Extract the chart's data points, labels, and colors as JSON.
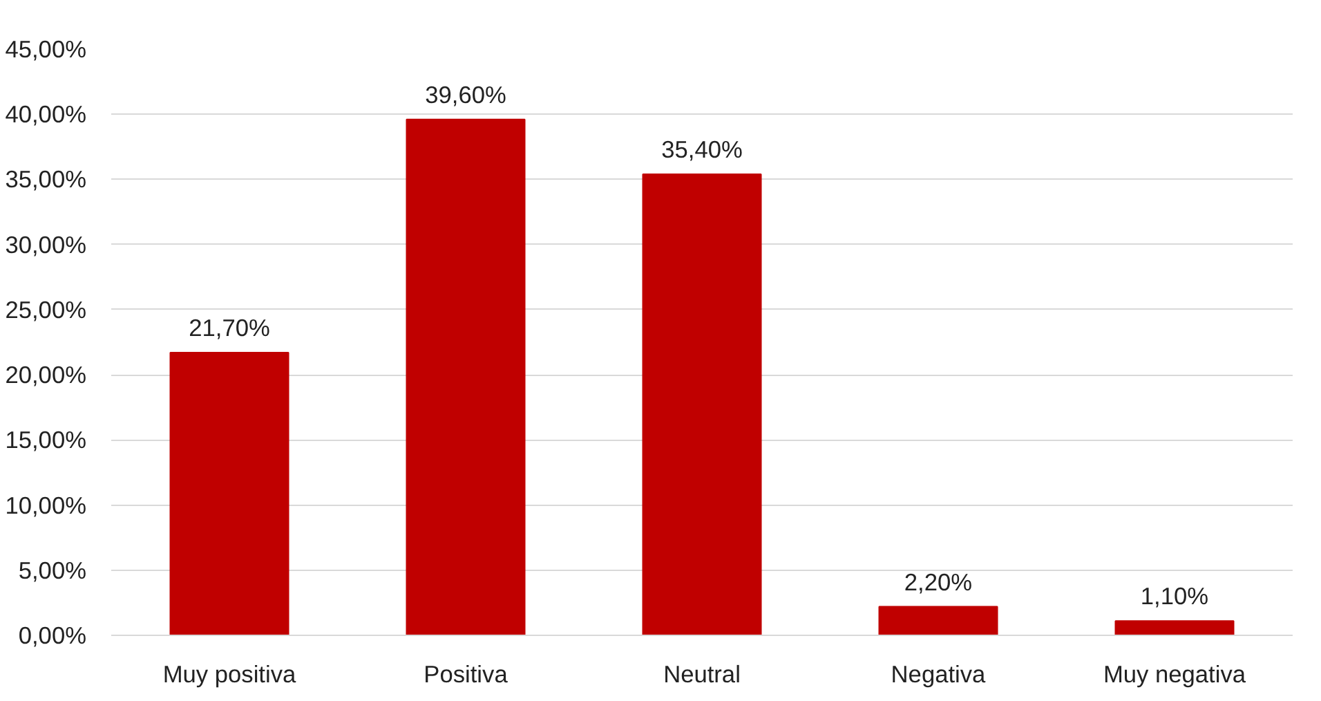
{
  "chart_data": {
    "type": "bar",
    "categories": [
      "Muy positiva",
      "Positiva",
      "Neutral",
      "Negativa",
      "Muy negativa"
    ],
    "values": [
      21.7,
      39.6,
      35.4,
      2.2,
      1.1
    ],
    "color": "#c00000",
    "value_labels": [
      "21,70%",
      "39,60%",
      "35,40%",
      "2,20%",
      "1,10%"
    ],
    "ylim": [
      0,
      45
    ],
    "yticks": [
      {
        "value": 0,
        "label": "0,00%"
      },
      {
        "value": 5,
        "label": "5,00%"
      },
      {
        "value": 10,
        "label": "10,00%"
      },
      {
        "value": 15,
        "label": "15,00%"
      },
      {
        "value": 20,
        "label": "20,00%"
      },
      {
        "value": 25,
        "label": "25,00%"
      },
      {
        "value": 30,
        "label": "30,00%"
      },
      {
        "value": 35,
        "label": "35,00%"
      },
      {
        "value": 40,
        "label": "40,00%"
      },
      {
        "value": 45,
        "label": "45,00%"
      }
    ],
    "grid": "y"
  }
}
